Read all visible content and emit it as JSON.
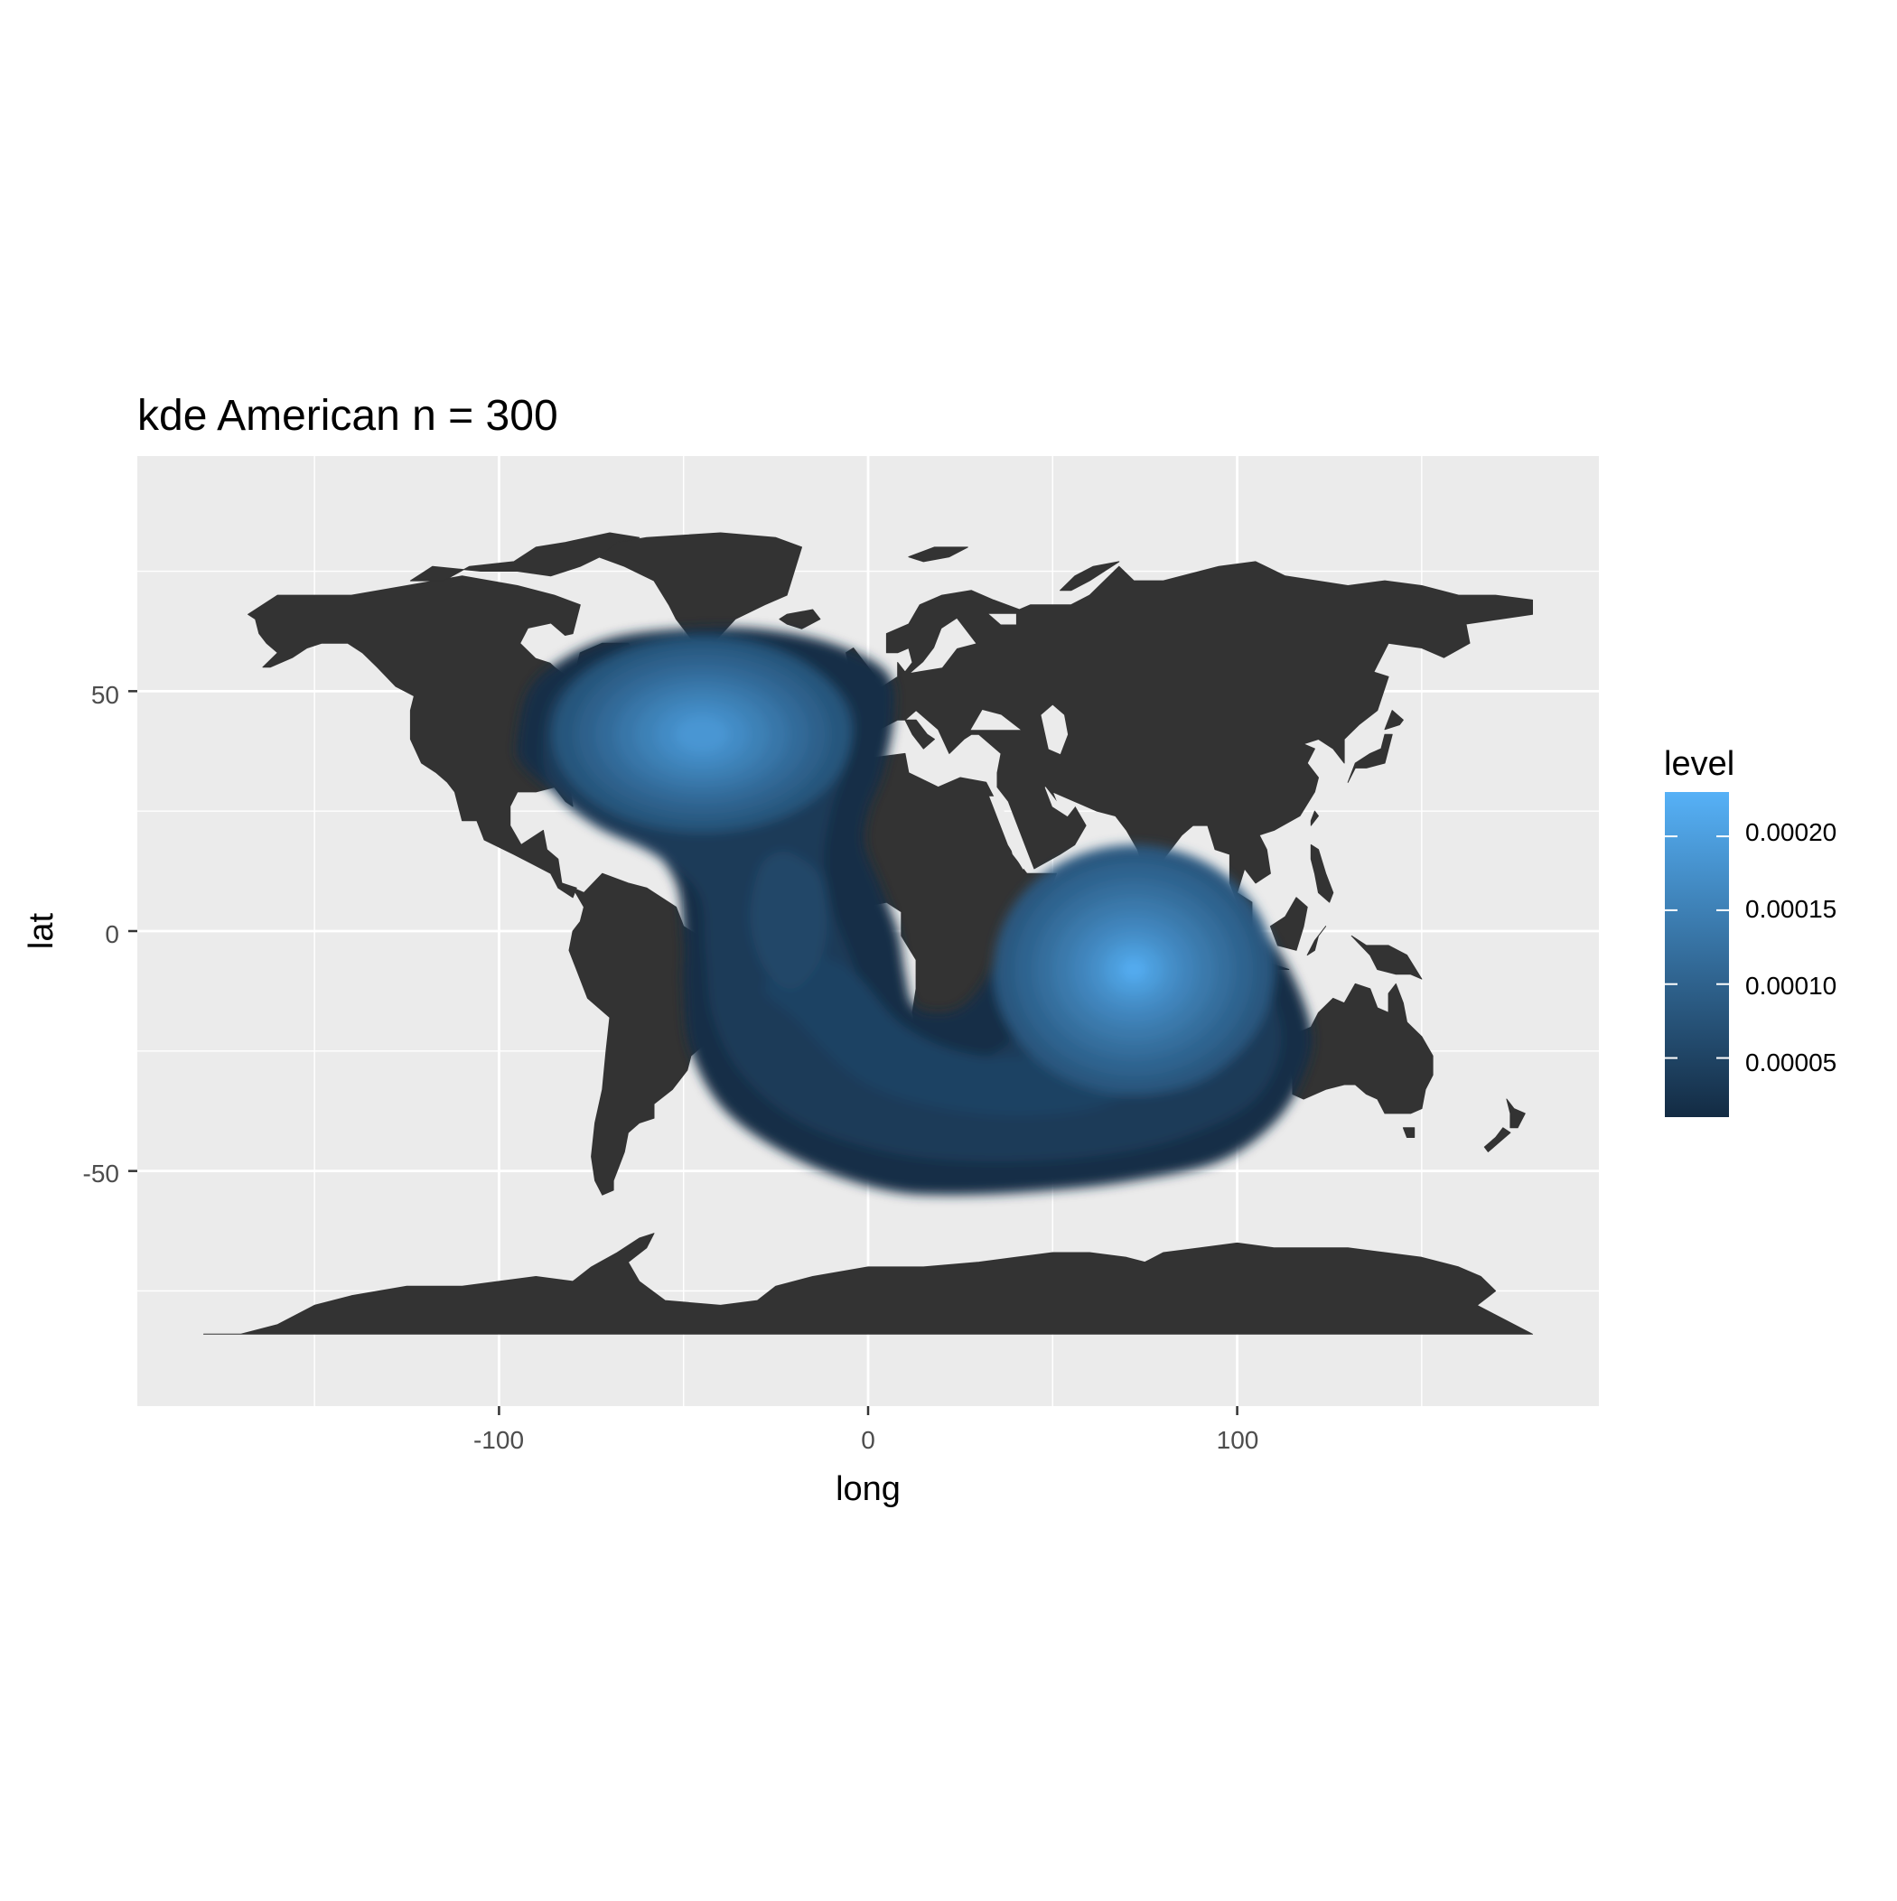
{
  "title": "kde  American n = 300",
  "x_axis": {
    "label": "long",
    "ticks": [
      "-100",
      "0",
      "100"
    ]
  },
  "y_axis": {
    "label": "lat",
    "ticks": [
      "50",
      "0",
      "-50"
    ]
  },
  "legend": {
    "title": "level",
    "labels": [
      "0.00020",
      "0.00015",
      "0.00010",
      "0.00005"
    ]
  },
  "colors": {
    "panel": "#EBEBEB",
    "grid": "#FFFFFF",
    "land": "#333333",
    "scale_low": "#132B43",
    "scale_high": "#56B1F7"
  },
  "chart_data": {
    "type": "filled-density-contour",
    "title": "kde  American n = 300",
    "xlabel": "long",
    "ylabel": "lat",
    "xlim": [
      -198,
      198
    ],
    "ylim": [
      -99,
      99
    ],
    "x_breaks": [
      -100,
      0,
      100
    ],
    "y_breaks": [
      -50,
      0,
      50
    ],
    "grid": true,
    "legend_position": "right",
    "legend_title": "level",
    "legend_breaks": [
      5e-05,
      0.0001,
      0.00015,
      0.0002
    ],
    "level_range": [
      1e-05,
      0.00023
    ],
    "density_peaks": [
      {
        "long": -45,
        "lat": 41,
        "level": 0.00021
      },
      {
        "long": 72,
        "lat": -8,
        "level": 0.00023
      },
      {
        "long": -20,
        "lat": 0,
        "level": 6e-05
      }
    ],
    "outer_contour": [
      [
        -95,
        40
      ],
      [
        -92,
        50
      ],
      [
        -84,
        56
      ],
      [
        -70,
        61
      ],
      [
        -50,
        63
      ],
      [
        -30,
        63
      ],
      [
        -10,
        60
      ],
      [
        5,
        54
      ],
      [
        7,
        45
      ],
      [
        4,
        33
      ],
      [
        0,
        25
      ],
      [
        -1,
        18
      ],
      [
        3,
        10
      ],
      [
        8,
        0
      ],
      [
        10,
        -9
      ],
      [
        12,
        -15
      ],
      [
        17,
        -17
      ],
      [
        25,
        -16
      ],
      [
        32,
        -10
      ],
      [
        38,
        0
      ],
      [
        48,
        8
      ],
      [
        62,
        14
      ],
      [
        80,
        14
      ],
      [
        98,
        8
      ],
      [
        112,
        -5
      ],
      [
        120,
        -20
      ],
      [
        118,
        -30
      ],
      [
        110,
        -40
      ],
      [
        95,
        -48
      ],
      [
        72,
        -52
      ],
      [
        50,
        -54
      ],
      [
        25,
        -55
      ],
      [
        5,
        -54
      ],
      [
        -18,
        -48
      ],
      [
        -38,
        -38
      ],
      [
        -48,
        -25
      ],
      [
        -50,
        -12
      ],
      [
        -50,
        -2
      ],
      [
        -52,
        10
      ],
      [
        -60,
        18
      ],
      [
        -72,
        23
      ],
      [
        -85,
        29
      ],
      [
        -94,
        35
      ]
    ]
  }
}
